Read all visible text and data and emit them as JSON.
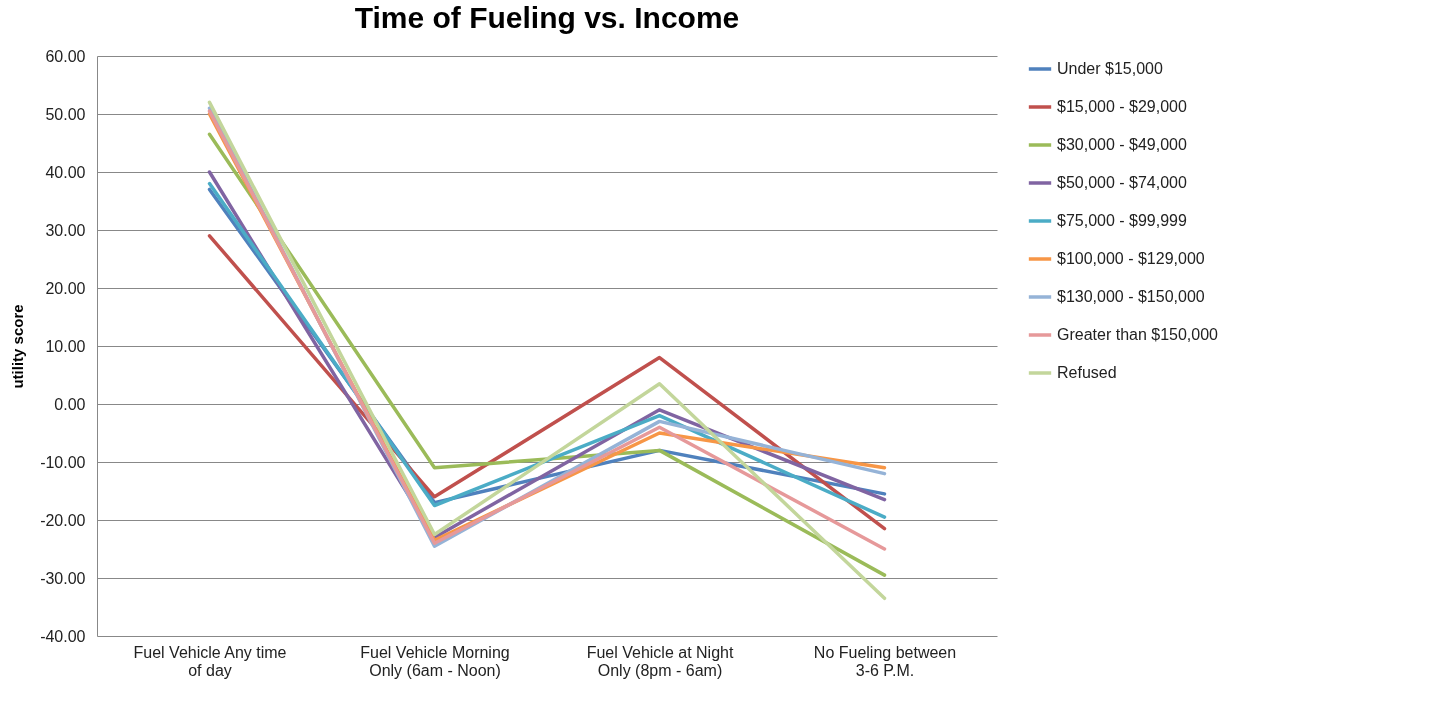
{
  "chart_data": {
    "type": "line",
    "title": "Time of Fueling vs. Income",
    "ylabel": "utility score",
    "categories": [
      "Fuel Vehicle Any time of day",
      "Fuel Vehicle Morning Only (6am - Noon)",
      "Fuel Vehicle at Night Only (8pm - 6am)",
      "No Fueling between 3-6 P.M."
    ],
    "series": [
      {
        "name": "Under $15,000",
        "color": "#4f81bd",
        "values": [
          37,
          -17,
          -8,
          -15.5
        ]
      },
      {
        "name": "$15,000 - $29,000",
        "color": "#c0504d",
        "values": [
          29,
          -16,
          8,
          -21.5
        ]
      },
      {
        "name": "$30,000 - $49,000",
        "color": "#9bbb59",
        "values": [
          46.5,
          -11,
          -8,
          -29.5
        ]
      },
      {
        "name": "$50,000 - $74,000",
        "color": "#8064a2",
        "values": [
          40,
          -23,
          -1,
          -16.5
        ]
      },
      {
        "name": "$75,000 - $99,999",
        "color": "#4bacc6",
        "values": [
          38,
          -17.5,
          -2,
          -19.5
        ]
      },
      {
        "name": "$100,000 - $129,000",
        "color": "#f79646",
        "values": [
          50,
          -23.5,
          -5,
          -11
        ]
      },
      {
        "name": "$130,000 - $150,000",
        "color": "#95b3d7",
        "values": [
          51,
          -24.5,
          -3,
          -12
        ]
      },
      {
        "name": "Greater than $150,000",
        "color": "#e6999a",
        "values": [
          50.5,
          -24,
          -4,
          -25
        ]
      },
      {
        "name": "Refused",
        "color": "#c3d69b",
        "values": [
          52,
          -22.5,
          3.5,
          -33.5
        ]
      }
    ],
    "ylim": [
      -40,
      60
    ],
    "yticks": [
      {
        "value": -40,
        "label": "-40.00"
      },
      {
        "value": -30,
        "label": "-30.00"
      },
      {
        "value": -20,
        "label": "-20.00"
      },
      {
        "value": -10,
        "label": "-10.00"
      },
      {
        "value": 0,
        "label": "0.00"
      },
      {
        "value": 10,
        "label": "10.00"
      },
      {
        "value": 20,
        "label": "20.00"
      },
      {
        "value": 30,
        "label": "30.00"
      },
      {
        "value": 40,
        "label": "40.00"
      },
      {
        "value": 50,
        "label": "50.00"
      },
      {
        "value": 60,
        "label": "60.00"
      }
    ],
    "grid": "y",
    "legend": "right",
    "marker": "none",
    "line_style": "solid"
  }
}
